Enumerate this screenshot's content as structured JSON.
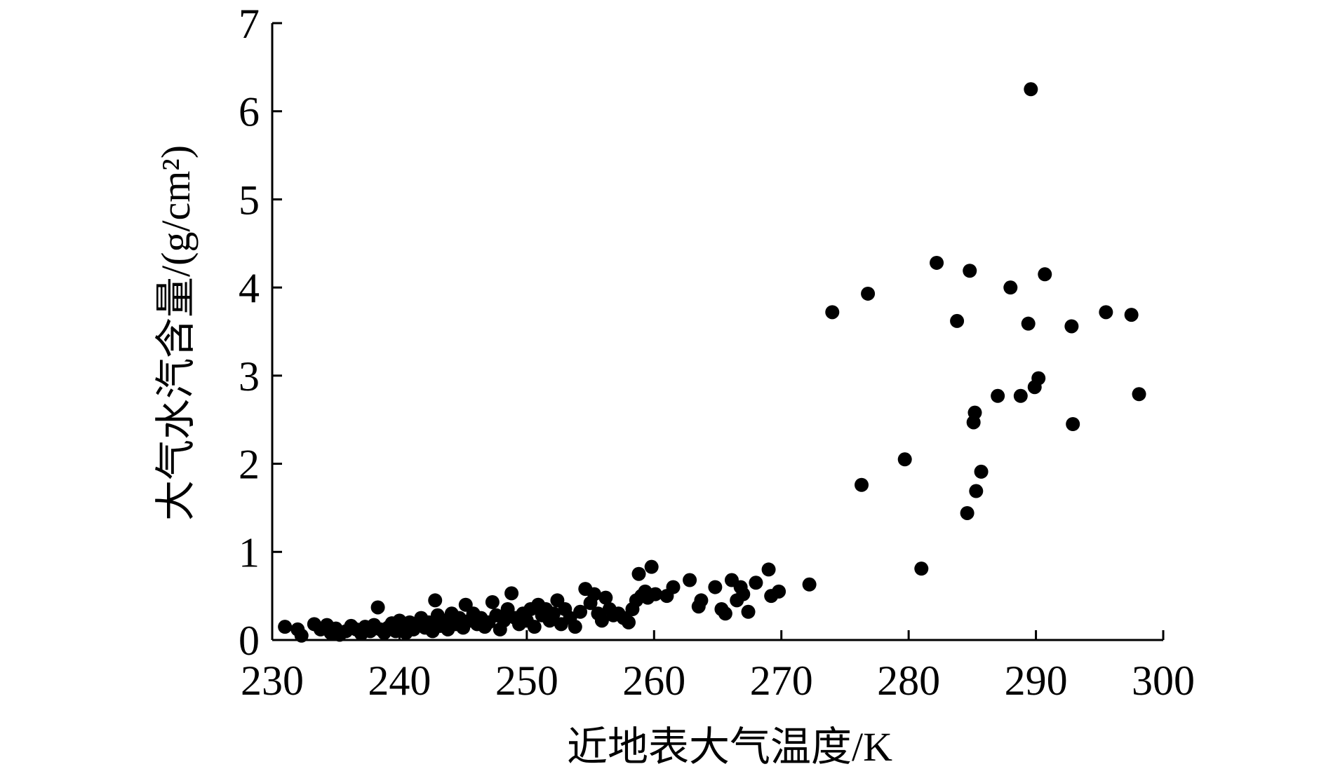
{
  "chart_data": {
    "type": "scatter",
    "title": "",
    "xlabel": "近地表大气温度/K",
    "ylabel": "大气水汽含量/(g/cm²)",
    "xlim": [
      230,
      300
    ],
    "ylim": [
      0,
      7
    ],
    "xticks": [
      230,
      240,
      250,
      260,
      270,
      280,
      290,
      300
    ],
    "yticks": [
      0,
      1,
      2,
      3,
      4,
      5,
      6,
      7
    ],
    "grid": false,
    "legend": "none",
    "points": [
      [
        231.0,
        0.15
      ],
      [
        232.0,
        0.12
      ],
      [
        232.3,
        0.05
      ],
      [
        233.3,
        0.18
      ],
      [
        233.8,
        0.12
      ],
      [
        234.3,
        0.17
      ],
      [
        234.6,
        0.08
      ],
      [
        235.0,
        0.13
      ],
      [
        235.3,
        0.06
      ],
      [
        235.8,
        0.1
      ],
      [
        236.2,
        0.16
      ],
      [
        236.6,
        0.12
      ],
      [
        237.0,
        0.07
      ],
      [
        237.3,
        0.15
      ],
      [
        237.7,
        0.1
      ],
      [
        238.0,
        0.17
      ],
      [
        238.3,
        0.37
      ],
      [
        238.5,
        0.12
      ],
      [
        238.8,
        0.08
      ],
      [
        239.1,
        0.14
      ],
      [
        239.4,
        0.19
      ],
      [
        239.7,
        0.1
      ],
      [
        240.0,
        0.22
      ],
      [
        240.3,
        0.15
      ],
      [
        240.5,
        0.08
      ],
      [
        240.8,
        0.2
      ],
      [
        241.1,
        0.12
      ],
      [
        241.4,
        0.18
      ],
      [
        241.7,
        0.25
      ],
      [
        242.0,
        0.14
      ],
      [
        242.3,
        0.2
      ],
      [
        242.6,
        0.1
      ],
      [
        242.8,
        0.45
      ],
      [
        243.0,
        0.28
      ],
      [
        243.2,
        0.16
      ],
      [
        243.5,
        0.22
      ],
      [
        243.8,
        0.12
      ],
      [
        244.1,
        0.3
      ],
      [
        244.4,
        0.18
      ],
      [
        244.7,
        0.25
      ],
      [
        245.0,
        0.14
      ],
      [
        245.2,
        0.4
      ],
      [
        245.5,
        0.22
      ],
      [
        245.8,
        0.3
      ],
      [
        246.1,
        0.18
      ],
      [
        246.4,
        0.25
      ],
      [
        246.7,
        0.15
      ],
      [
        247.0,
        0.2
      ],
      [
        247.3,
        0.43
      ],
      [
        247.6,
        0.28
      ],
      [
        247.9,
        0.12
      ],
      [
        248.2,
        0.22
      ],
      [
        248.5,
        0.35
      ],
      [
        248.8,
        0.53
      ],
      [
        249.1,
        0.25
      ],
      [
        249.4,
        0.18
      ],
      [
        249.7,
        0.3
      ],
      [
        250.0,
        0.22
      ],
      [
        250.3,
        0.35
      ],
      [
        250.6,
        0.15
      ],
      [
        250.9,
        0.4
      ],
      [
        251.2,
        0.28
      ],
      [
        251.5,
        0.35
      ],
      [
        251.8,
        0.22
      ],
      [
        252.1,
        0.3
      ],
      [
        252.4,
        0.45
      ],
      [
        252.7,
        0.18
      ],
      [
        253.0,
        0.35
      ],
      [
        253.4,
        0.25
      ],
      [
        253.8,
        0.15
      ],
      [
        254.2,
        0.32
      ],
      [
        254.6,
        0.58
      ],
      [
        255.0,
        0.42
      ],
      [
        255.3,
        0.52
      ],
      [
        255.6,
        0.3
      ],
      [
        255.9,
        0.22
      ],
      [
        256.2,
        0.48
      ],
      [
        256.5,
        0.35
      ],
      [
        256.8,
        0.28
      ],
      [
        257.2,
        0.3
      ],
      [
        257.6,
        0.25
      ],
      [
        258.0,
        0.2
      ],
      [
        258.3,
        0.35
      ],
      [
        258.6,
        0.45
      ],
      [
        258.8,
        0.75
      ],
      [
        259.0,
        0.5
      ],
      [
        259.3,
        0.55
      ],
      [
        259.5,
        0.48
      ],
      [
        259.8,
        0.83
      ],
      [
        260.1,
        0.52
      ],
      [
        261.0,
        0.5
      ],
      [
        261.5,
        0.6
      ],
      [
        262.8,
        0.68
      ],
      [
        263.5,
        0.38
      ],
      [
        263.7,
        0.45
      ],
      [
        264.8,
        0.6
      ],
      [
        265.3,
        0.35
      ],
      [
        265.6,
        0.3
      ],
      [
        266.1,
        0.68
      ],
      [
        266.5,
        0.45
      ],
      [
        266.8,
        0.6
      ],
      [
        267.0,
        0.52
      ],
      [
        267.4,
        0.32
      ],
      [
        268.0,
        0.65
      ],
      [
        269.0,
        0.8
      ],
      [
        269.2,
        0.5
      ],
      [
        269.8,
        0.55
      ],
      [
        272.2,
        0.63
      ],
      [
        274.0,
        3.72
      ],
      [
        276.3,
        1.76
      ],
      [
        276.8,
        3.93
      ],
      [
        279.7,
        2.05
      ],
      [
        281.0,
        0.81
      ],
      [
        282.2,
        4.28
      ],
      [
        283.8,
        3.62
      ],
      [
        284.6,
        1.44
      ],
      [
        284.8,
        4.19
      ],
      [
        285.1,
        2.47
      ],
      [
        285.2,
        2.58
      ],
      [
        285.3,
        1.69
      ],
      [
        285.7,
        1.91
      ],
      [
        287.0,
        2.77
      ],
      [
        288.0,
        4.0
      ],
      [
        288.8,
        2.77
      ],
      [
        289.4,
        3.59
      ],
      [
        289.6,
        6.25
      ],
      [
        289.9,
        2.87
      ],
      [
        290.2,
        2.97
      ],
      [
        290.7,
        4.15
      ],
      [
        292.8,
        3.56
      ],
      [
        292.9,
        2.45
      ],
      [
        295.5,
        3.72
      ],
      [
        297.5,
        3.69
      ],
      [
        298.1,
        2.79
      ]
    ]
  }
}
